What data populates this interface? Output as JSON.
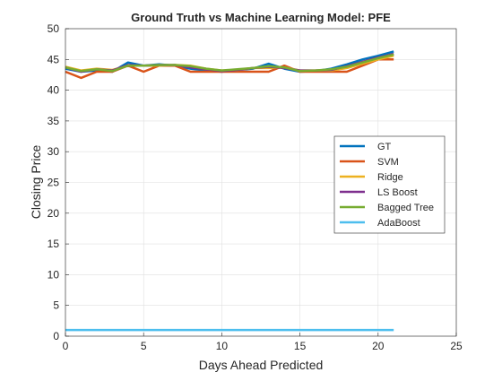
{
  "chart_data": {
    "type": "line",
    "title": "Ground Truth vs Machine Learning Model: PFE",
    "xlabel": "Days Ahead Predicted",
    "ylabel": "Closing Price",
    "xlim": [
      0,
      25
    ],
    "ylim": [
      0,
      50
    ],
    "xticks": [
      "0",
      "5",
      "10",
      "15",
      "20",
      "25"
    ],
    "yticks": [
      "0",
      "5",
      "10",
      "15",
      "20",
      "25",
      "30",
      "35",
      "40",
      "45",
      "50"
    ],
    "grid": true,
    "legend_position": "right",
    "x": [
      0,
      1,
      2,
      3,
      4,
      5,
      6,
      7,
      8,
      9,
      10,
      11,
      12,
      13,
      14,
      15,
      16,
      17,
      18,
      19,
      20,
      21
    ],
    "series": [
      {
        "name": "GT",
        "color": "#0072BD",
        "values": [
          43.5,
          43.0,
          43.2,
          43.0,
          44.5,
          44.0,
          44.2,
          44.0,
          43.5,
          43.2,
          43.0,
          43.3,
          43.5,
          44.3,
          43.5,
          43.0,
          43.1,
          43.5,
          44.2,
          45.0,
          45.6,
          46.3
        ]
      },
      {
        "name": "SVM",
        "color": "#D95319",
        "values": [
          43.0,
          42.0,
          43.0,
          43.0,
          44.0,
          43.0,
          44.0,
          44.0,
          43.0,
          43.0,
          43.0,
          43.0,
          43.0,
          43.0,
          44.0,
          43.0,
          43.0,
          43.0,
          43.0,
          44.0,
          45.0,
          45.0
        ]
      },
      {
        "name": "Ridge",
        "color": "#EDB120",
        "values": [
          43.8,
          43.2,
          43.5,
          43.3,
          44.0,
          44.0,
          44.0,
          44.1,
          44.0,
          43.5,
          43.2,
          43.3,
          43.6,
          43.6,
          43.7,
          43.2,
          43.2,
          43.2,
          43.6,
          44.3,
          45.0,
          45.6
        ]
      },
      {
        "name": "LS Boost",
        "color": "#7E2F8E",
        "values": [
          43.7,
          43.0,
          43.4,
          43.2,
          44.1,
          44.0,
          44.1,
          44.1,
          43.7,
          43.4,
          43.1,
          43.3,
          43.6,
          43.8,
          43.6,
          43.2,
          43.2,
          43.3,
          43.9,
          44.6,
          45.3,
          45.9
        ]
      },
      {
        "name": "Bagged Tree",
        "color": "#77AC30",
        "values": [
          43.7,
          43.1,
          43.4,
          43.1,
          44.0,
          44.0,
          44.1,
          44.1,
          43.9,
          43.5,
          43.2,
          43.4,
          43.6,
          43.9,
          43.7,
          43.1,
          43.2,
          43.4,
          43.8,
          44.5,
          45.2,
          45.8
        ]
      },
      {
        "name": "AdaBoost",
        "color": "#4DBEEE",
        "values": [
          1,
          1,
          1,
          1,
          1,
          1,
          1,
          1,
          1,
          1,
          1,
          1,
          1,
          1,
          1,
          1,
          1,
          1,
          1,
          1,
          1,
          1
        ]
      }
    ]
  }
}
